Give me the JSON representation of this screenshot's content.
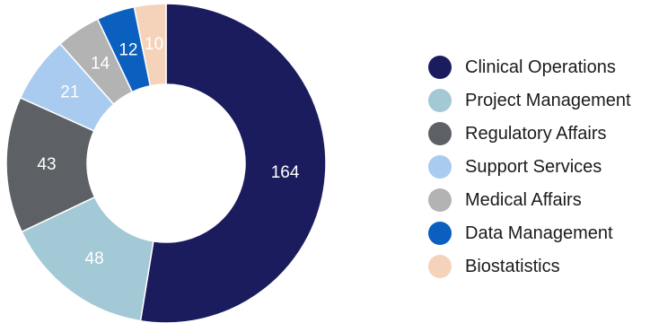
{
  "chart_data": {
    "type": "pie",
    "subtype": "donut",
    "title": "",
    "legend_position": "right",
    "series": [
      {
        "name": "Clinical Operations",
        "value": 164,
        "color": "#1b1c5e"
      },
      {
        "name": "Project Management",
        "value": 48,
        "color": "#a3c8d6"
      },
      {
        "name": "Regulatory Affairs",
        "value": 43,
        "color": "#5d6065"
      },
      {
        "name": "Support Services",
        "value": 21,
        "color": "#a9cbef"
      },
      {
        "name": "Medical Affairs",
        "value": 14,
        "color": "#b3b3b3"
      },
      {
        "name": "Data Management",
        "value": 12,
        "color": "#0a5fbf"
      },
      {
        "name": "Biostatistics",
        "value": 10,
        "color": "#f5d3bb"
      }
    ]
  }
}
